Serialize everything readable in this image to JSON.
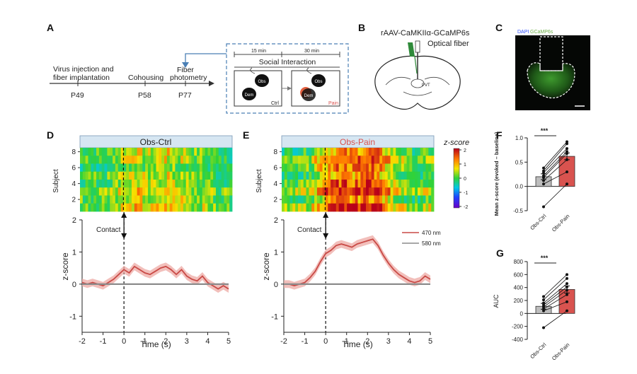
{
  "panels": {
    "A": {
      "letter": "A",
      "timeline": [
        {
          "label": "Virus injection and",
          "label2": "fiber implantation",
          "day": "P49"
        },
        {
          "label": "Cohousing",
          "label2": "",
          "day": "P58"
        },
        {
          "label": "Fiber",
          "label2": "photometry",
          "day": "P77"
        }
      ],
      "box_durations": [
        "15 min",
        "30 min"
      ],
      "box_title": "Social Interaction",
      "mouse_labels": [
        "Obs",
        "Dem",
        "Obs",
        "Dem"
      ],
      "cond_ctrl": "Ctrl",
      "cond_pain": "Pain"
    },
    "B": {
      "letter": "B",
      "virus": "rAAV-CaMKIIα-GCaMP6s",
      "fiber": "Optical fiber",
      "region": "PVT"
    },
    "C": {
      "letter": "C",
      "dapi": "DAPI",
      "gcamp": "GCaMP6s"
    },
    "D": {
      "letter": "D",
      "title": "Obs-Ctrl",
      "contact": "Contact"
    },
    "E": {
      "letter": "E",
      "title": "Obs-Pain",
      "contact": "Contact"
    },
    "F": {
      "letter": "F",
      "sig": "***"
    },
    "G": {
      "letter": "G",
      "sig": "***"
    }
  },
  "colors": {
    "pain_red": "#d9534f",
    "trace_red": "#c94a46",
    "shade_red": "#eea9a4",
    "ctrl_gray": "#bdbdbd",
    "baseline_gray": "#8c8c8c",
    "header_blue": "#d6e6f2",
    "dash_blue": "#4a7fb5"
  },
  "chart_data": [
    {
      "id": "D-heatmap",
      "type": "heatmap",
      "title": "Obs-Ctrl",
      "ylabel": "Subject",
      "yticks": [
        2,
        4,
        6,
        8
      ],
      "subjects": 8,
      "x_range": [
        -2,
        5
      ],
      "colorbar": {
        "label": "z-score",
        "ticks": [
          2,
          1,
          0,
          -1,
          -2
        ],
        "range": [
          -2,
          2
        ]
      }
    },
    {
      "id": "E-heatmap",
      "type": "heatmap",
      "title": "Obs-Pain",
      "ylabel": "Subject",
      "yticks": [
        2,
        4,
        6,
        8
      ],
      "subjects": 8,
      "x_range": [
        -2,
        5
      ],
      "colorbar": {
        "label": "z-score",
        "ticks": [
          2,
          1,
          0,
          -1,
          -2
        ],
        "range": [
          -2,
          2
        ]
      }
    },
    {
      "id": "D-trace",
      "type": "line",
      "xlabel": "Time (s)",
      "ylabel": "z-score",
      "xlim": [
        -2,
        5
      ],
      "ylim": [
        -1.5,
        2
      ],
      "xticks": [
        -2,
        -1,
        0,
        1,
        2,
        3,
        4,
        5
      ],
      "yticks": [
        2,
        1,
        0,
        -1
      ],
      "annotation": "Contact",
      "series": [
        {
          "role": "470",
          "x": [
            -2,
            -1.75,
            -1.5,
            -1.25,
            -1,
            -0.75,
            -0.5,
            -0.25,
            0,
            0.25,
            0.5,
            0.75,
            1,
            1.25,
            1.5,
            1.75,
            2,
            2.25,
            2.5,
            2.75,
            3,
            3.25,
            3.5,
            3.75,
            4,
            4.25,
            4.5,
            4.75,
            5
          ],
          "y": [
            0.05,
            0.0,
            0.05,
            0.0,
            -0.05,
            0.05,
            0.15,
            0.3,
            0.45,
            0.35,
            0.55,
            0.45,
            0.35,
            0.3,
            0.4,
            0.5,
            0.55,
            0.45,
            0.3,
            0.45,
            0.25,
            0.15,
            0.1,
            0.25,
            0.05,
            -0.05,
            -0.15,
            -0.05,
            -0.15
          ],
          "sem": 0.12
        },
        {
          "role": "580",
          "x": [
            -2,
            5
          ],
          "y": [
            0,
            0
          ]
        }
      ]
    },
    {
      "id": "E-trace",
      "type": "line",
      "xlabel": "Time (s)",
      "ylabel": "z-score",
      "xlim": [
        -2,
        5
      ],
      "ylim": [
        -1.5,
        2
      ],
      "xticks": [
        -2,
        -1,
        0,
        1,
        2,
        3,
        4,
        5
      ],
      "yticks": [
        2,
        1,
        0,
        -1
      ],
      "annotation": "Contact",
      "legend": [
        "470 nm",
        "580 nm"
      ],
      "legend_position": "right",
      "series": [
        {
          "name": "470 nm",
          "x": [
            -2,
            -1.75,
            -1.5,
            -1.25,
            -1,
            -0.75,
            -0.5,
            -0.25,
            0,
            0.25,
            0.5,
            0.75,
            1,
            1.25,
            1.5,
            1.75,
            2,
            2.25,
            2.5,
            2.75,
            3,
            3.25,
            3.5,
            3.75,
            4,
            4.25,
            4.5,
            4.75,
            5
          ],
          "y": [
            0.0,
            0.0,
            -0.05,
            0.0,
            0.05,
            0.2,
            0.4,
            0.7,
            0.95,
            1.05,
            1.2,
            1.25,
            1.2,
            1.15,
            1.25,
            1.3,
            1.35,
            1.4,
            1.2,
            0.9,
            0.65,
            0.45,
            0.3,
            0.2,
            0.1,
            0.05,
            0.1,
            0.25,
            0.15
          ],
          "sem": 0.12
        },
        {
          "name": "580 nm",
          "x": [
            -2,
            5
          ],
          "y": [
            0,
            0
          ]
        }
      ]
    },
    {
      "id": "F-bars",
      "type": "bar",
      "ylabel": "Mean z-score (evoked – baseline)",
      "categories": [
        "Obs-Ctrl",
        "Obs-Pain"
      ],
      "values": [
        0.2,
        0.62
      ],
      "errors": [
        0.06,
        0.07
      ],
      "ylim": [
        -0.5,
        1.0
      ],
      "yticks": [
        1.0,
        0.5,
        0.0,
        -0.5
      ],
      "pairs": [
        [
          -0.42,
          0.05
        ],
        [
          0.05,
          0.3
        ],
        [
          0.12,
          0.55
        ],
        [
          0.18,
          0.68
        ],
        [
          0.22,
          0.72
        ],
        [
          0.28,
          0.78
        ],
        [
          0.32,
          0.88
        ],
        [
          0.38,
          0.92
        ]
      ]
    },
    {
      "id": "G-bars",
      "type": "bar",
      "ylabel": "AUC",
      "categories": [
        "Obs-Ctrl",
        "Obs-Pain"
      ],
      "values": [
        110,
        370
      ],
      "errors": [
        45,
        55
      ],
      "ylim": [
        -400,
        800
      ],
      "yticks": [
        800,
        600,
        400,
        200,
        0,
        -200,
        -400
      ],
      "pairs": [
        [
          -220,
          40
        ],
        [
          40,
          180
        ],
        [
          70,
          290
        ],
        [
          100,
          360
        ],
        [
          130,
          410
        ],
        [
          160,
          460
        ],
        [
          210,
          540
        ],
        [
          260,
          600
        ]
      ]
    }
  ]
}
